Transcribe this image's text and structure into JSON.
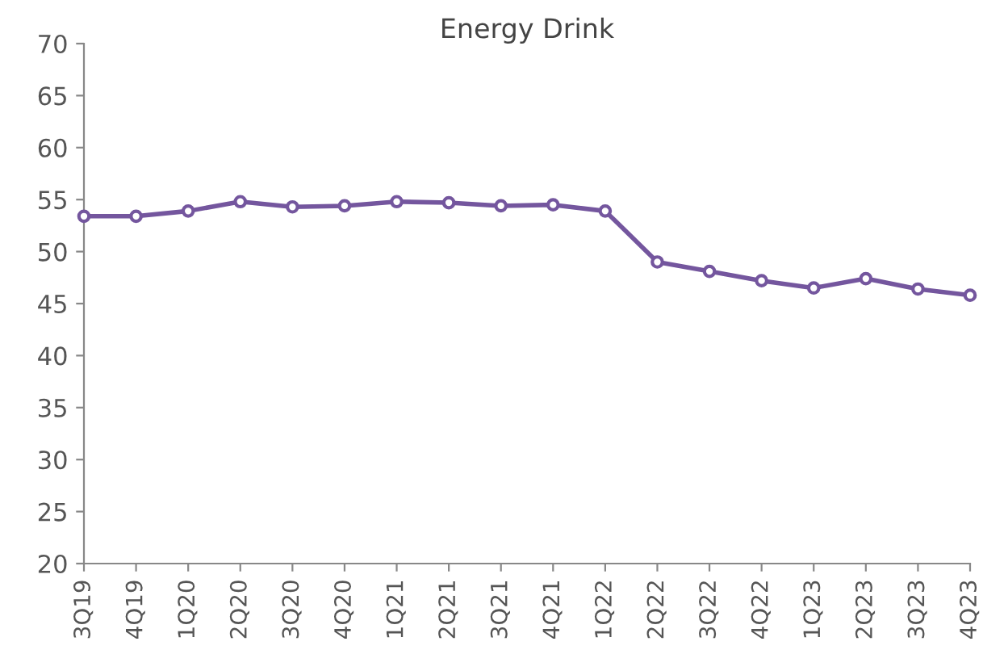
{
  "chart_data": {
    "type": "line",
    "title": "Energy Drink",
    "categories": [
      "3Q19",
      "4Q19",
      "1Q20",
      "2Q20",
      "3Q20",
      "4Q20",
      "1Q21",
      "2Q21",
      "3Q21",
      "4Q21",
      "1Q22",
      "2Q22",
      "3Q22",
      "4Q22",
      "1Q23",
      "2Q23",
      "3Q23",
      "4Q23"
    ],
    "series": [
      {
        "color": "#74569e",
        "values": [
          53.4,
          53.4,
          53.9,
          54.8,
          54.3,
          54.4,
          54.8,
          54.7,
          54.4,
          54.5,
          53.9,
          49.0,
          48.1,
          47.2,
          46.5,
          47.4,
          46.4,
          45.8
        ]
      }
    ],
    "ylim": [
      20,
      70
    ],
    "yticks": [
      20,
      25,
      30,
      35,
      40,
      45,
      50,
      55,
      60,
      65,
      70
    ],
    "grid": false,
    "legend": false,
    "marker": "circle",
    "line_style": "solid"
  }
}
